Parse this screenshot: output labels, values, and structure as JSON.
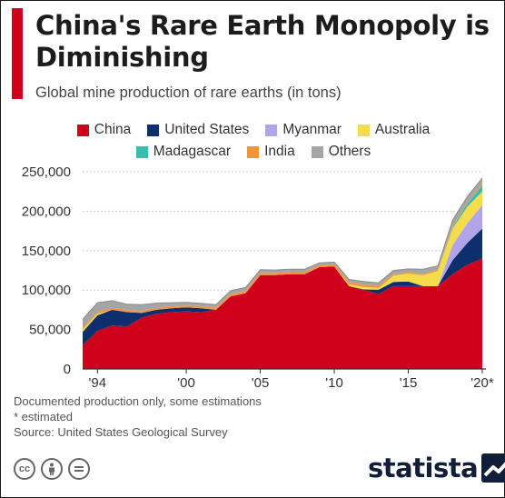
{
  "header": {
    "title": "China's Rare Earth Monopoly is Diminishing",
    "subtitle": "Global mine production of rare earths (in tons)"
  },
  "notes": {
    "line1": "Documented production only, some estimations",
    "line2": "* estimated",
    "source": "Source: United States Geological Survey"
  },
  "branding": {
    "name": "statista",
    "license_icons": [
      "cc-icon",
      "attribution-icon",
      "no-derivatives-icon"
    ]
  },
  "colors": {
    "accent": "#d0021b",
    "China": "#d0021b",
    "United States": "#0d2f6e",
    "Myanmar": "#b2a4e8",
    "Australia": "#f5dc4a",
    "Madagascar": "#3bbcb0",
    "India": "#f0953f",
    "Others": "#a5a5a5"
  },
  "chart_data": {
    "type": "area",
    "stacked": true,
    "title": "China's Rare Earth Monopoly is Diminishing",
    "subtitle": "Global mine production of rare earths (in tons)",
    "x": [
      1993,
      1994,
      1995,
      1996,
      1997,
      1998,
      1999,
      2000,
      2001,
      2002,
      2003,
      2004,
      2005,
      2006,
      2007,
      2008,
      2009,
      2010,
      2011,
      2012,
      2013,
      2014,
      2015,
      2016,
      2017,
      2018,
      2019,
      2020
    ],
    "xticks": [
      1994,
      2000,
      2005,
      2010,
      2015,
      2020
    ],
    "xtick_labels": [
      "'94",
      "'00",
      "'05",
      "'10",
      "'15",
      "'20*"
    ],
    "yticks": [
      0,
      50000,
      100000,
      150000,
      200000,
      250000
    ],
    "ytick_labels": [
      "0",
      "50,000",
      "100,000",
      "150,000",
      "200,000",
      "250,000"
    ],
    "ylim": [
      0,
      250000
    ],
    "legend_position": "top",
    "series": [
      {
        "name": "China",
        "values": [
          30000,
          48000,
          55000,
          54000,
          65000,
          70000,
          72000,
          73000,
          72000,
          75000,
          92000,
          96000,
          119000,
          119000,
          120000,
          120000,
          129000,
          130000,
          105000,
          100000,
          95000,
          105000,
          105000,
          105000,
          105000,
          120000,
          132000,
          140000
        ]
      },
      {
        "name": "United States",
        "values": [
          17000,
          20000,
          20000,
          18000,
          6000,
          5000,
          5000,
          5000,
          5000,
          0,
          0,
          0,
          0,
          0,
          0,
          0,
          0,
          0,
          0,
          800,
          5500,
          5400,
          5900,
          0,
          0,
          18000,
          28000,
          38000
        ]
      },
      {
        "name": "Myanmar",
        "values": [
          0,
          0,
          0,
          0,
          0,
          0,
          0,
          0,
          0,
          0,
          0,
          0,
          0,
          0,
          0,
          0,
          0,
          0,
          0,
          0,
          0,
          0,
          0,
          0,
          0,
          19000,
          25000,
          30000
        ]
      },
      {
        "name": "Australia",
        "values": [
          3000,
          2000,
          0,
          0,
          0,
          0,
          0,
          0,
          0,
          0,
          0,
          0,
          0,
          0,
          0,
          0,
          0,
          0,
          2200,
          3200,
          2000,
          8000,
          10000,
          14000,
          19000,
          21000,
          21000,
          17000
        ]
      },
      {
        "name": "Madagascar",
        "values": [
          0,
          0,
          0,
          0,
          0,
          0,
          0,
          0,
          0,
          0,
          0,
          0,
          0,
          0,
          0,
          0,
          0,
          0,
          0,
          0,
          0,
          0,
          0,
          0,
          0,
          2000,
          4000,
          8000
        ]
      },
      {
        "name": "India",
        "values": [
          2000,
          2500,
          2500,
          2500,
          2500,
          2500,
          2500,
          2500,
          2500,
          2500,
          2700,
          2700,
          2700,
          2700,
          2700,
          2700,
          2700,
          2800,
          2800,
          2900,
          2900,
          1500,
          1500,
          1500,
          1800,
          1800,
          1800,
          2000
        ]
      },
      {
        "name": "Others",
        "values": [
          11000,
          11500,
          9000,
          7500,
          8000,
          6000,
          4500,
          4000,
          3800,
          4000,
          4500,
          4500,
          4200,
          3800,
          3800,
          3700,
          2800,
          2700,
          3500,
          4000,
          3800,
          5000,
          4500,
          6000,
          5000,
          7000,
          7000,
          7000
        ]
      }
    ]
  }
}
